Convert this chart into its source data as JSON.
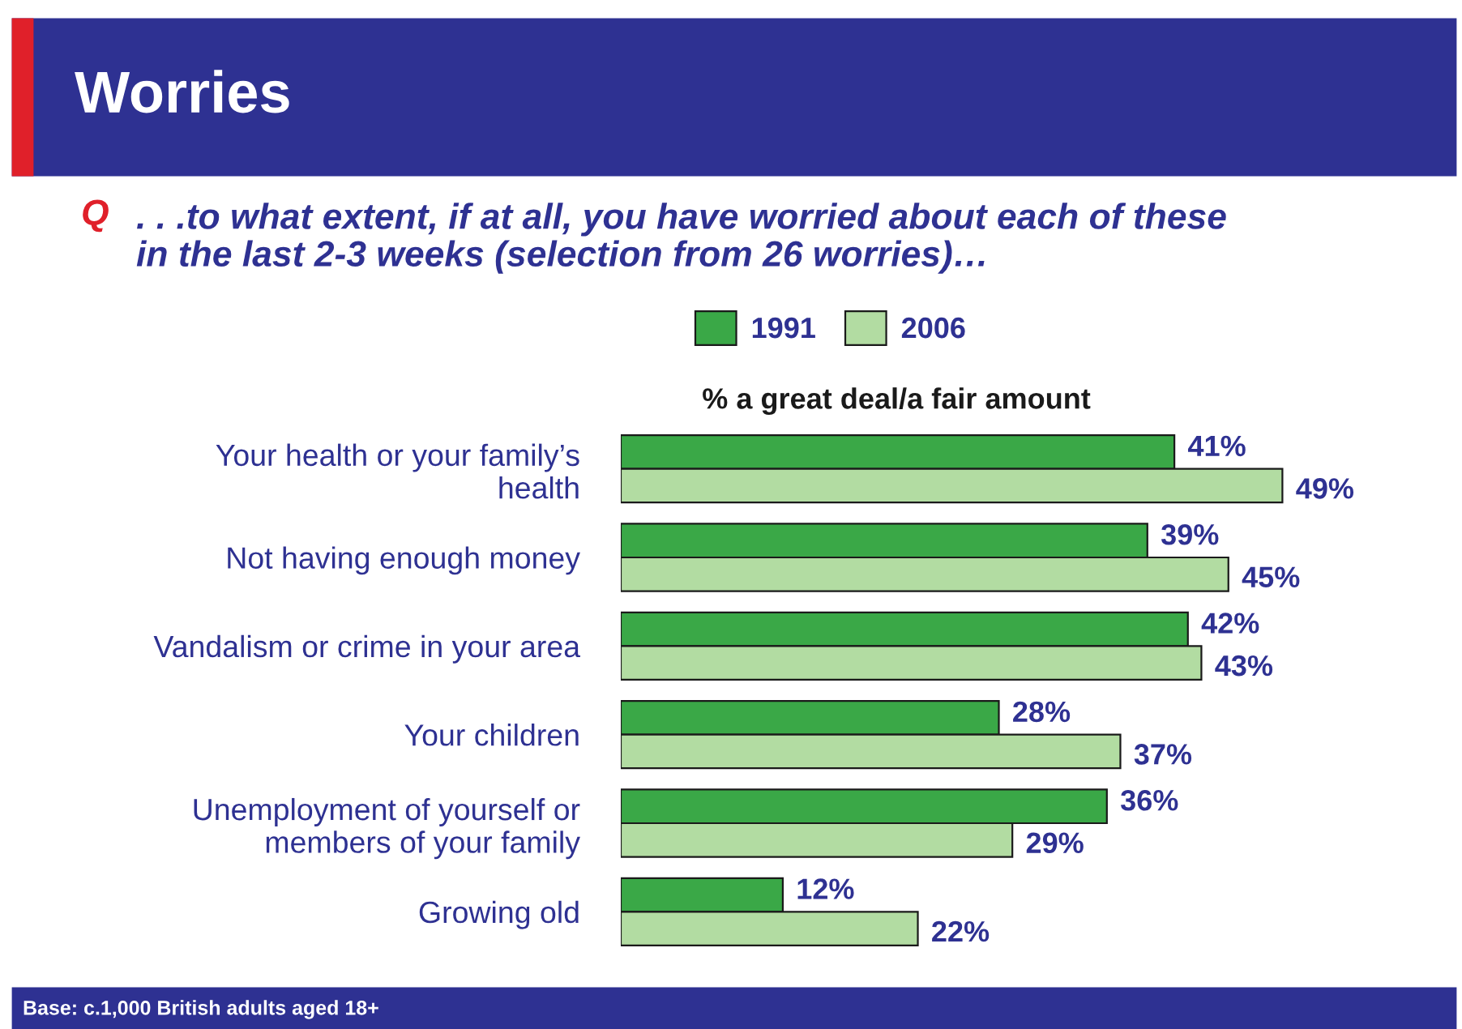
{
  "chart_data": {
    "type": "bar",
    "orientation": "horizontal",
    "title": "Worries",
    "subtitle": ". . .to what extent, if at all, you have worried about each of these\nin the last 2-3 weeks (selection from 26 worries)…",
    "xlabel": "% a great deal/a fair amount",
    "annotations": [
      "Q",
      "Base: c.1,000 British adults aged 18+"
    ],
    "categories": [
      "Your health or your family’s\nhealth",
      "Not having enough money",
      "Vandalism or crime in your area",
      "Your children",
      "Unemployment of yourself or\nmembers of your family",
      "Growing old"
    ],
    "series": [
      {
        "name": "1991",
        "color": "#3aa847",
        "values": [
          41,
          39,
          42,
          28,
          36,
          12
        ],
        "value_labels": [
          "41%",
          "39%",
          "42%",
          "28%",
          "36%",
          "12%"
        ]
      },
      {
        "name": "2006",
        "color": "#b2dca2",
        "values": [
          49,
          45,
          43,
          37,
          29,
          22
        ],
        "value_labels": [
          "49%",
          "45%",
          "43%",
          "37%",
          "29%",
          "22%"
        ]
      }
    ],
    "legend": "top",
    "grid": false,
    "tick_labels": "y"
  }
}
